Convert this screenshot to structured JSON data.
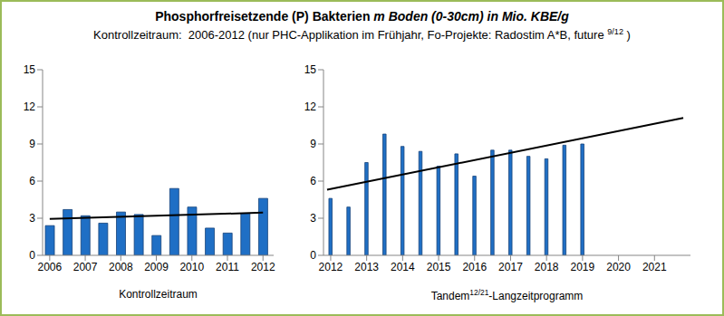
{
  "title": [
    {
      "text": "Phosphorfreisetzende (P) Bakterien "
    },
    {
      "text": "m Boden (0-30cm) in Mio. KBE/g",
      "italic": true
    }
  ],
  "subtitle": [
    {
      "text": "Kontrollzeitraum:  2006-2012 (nur PHC-Applikation im Frühjahr, Fo-Projekte: Radostim A*B, future "
    },
    {
      "text": "9/12",
      "sup": true
    },
    {
      "text": " )"
    }
  ],
  "chart_data": [
    {
      "type": "bar",
      "x_label": [
        {
          "text": "Kontrollzeitraum"
        }
      ],
      "x": [
        2006,
        2006.5,
        2007,
        2007.5,
        2008,
        2008.5,
        2009,
        2009.5,
        2010,
        2010.5,
        2011,
        2011.5,
        2012
      ],
      "values": [
        2.4,
        3.7,
        3.2,
        2.6,
        3.5,
        3.3,
        1.6,
        5.4,
        3.9,
        2.2,
        1.8,
        3.4,
        4.6
      ],
      "color": "#1F6FC5",
      "xlim": [
        2005.8,
        2012.3
      ],
      "xticks": [
        2006,
        2007,
        2008,
        2009,
        2010,
        2011,
        2012
      ],
      "ylim": [
        0,
        15
      ],
      "yticks": [
        0,
        3,
        6,
        9,
        12,
        15
      ],
      "grid": false,
      "trendline": {
        "x": [
          2006,
          2012
        ],
        "values": [
          2.95,
          3.45
        ],
        "color": "#000000"
      }
    },
    {
      "type": "bar",
      "x_label": [
        {
          "text": "Tandem"
        },
        {
          "text": "12/21",
          "sup": true
        },
        {
          "text": "-Langzeitprogramm"
        }
      ],
      "x": [
        2012,
        2012.5,
        2013,
        2013.5,
        2014,
        2014.5,
        2015,
        2015.5,
        2016,
        2016.5,
        2017,
        2017.5,
        2018,
        2018.5,
        2019
      ],
      "values": [
        4.6,
        3.9,
        7.5,
        9.8,
        8.8,
        8.4,
        7.2,
        8.2,
        6.4,
        8.5,
        8.5,
        8,
        7.8,
        8.9,
        9
      ],
      "color": "#1F6FC5",
      "xlim": [
        2011.8,
        2022
      ],
      "xticks": [
        2012,
        2013,
        2014,
        2015,
        2016,
        2017,
        2018,
        2019,
        2020,
        2021
      ],
      "ylim": [
        0,
        15
      ],
      "yticks": [
        0,
        3,
        6,
        9,
        12,
        15
      ],
      "grid": false,
      "trendline": {
        "x": [
          2011.9,
          2021.8
        ],
        "values": [
          5.3,
          11.1
        ],
        "color": "#000000"
      }
    }
  ]
}
